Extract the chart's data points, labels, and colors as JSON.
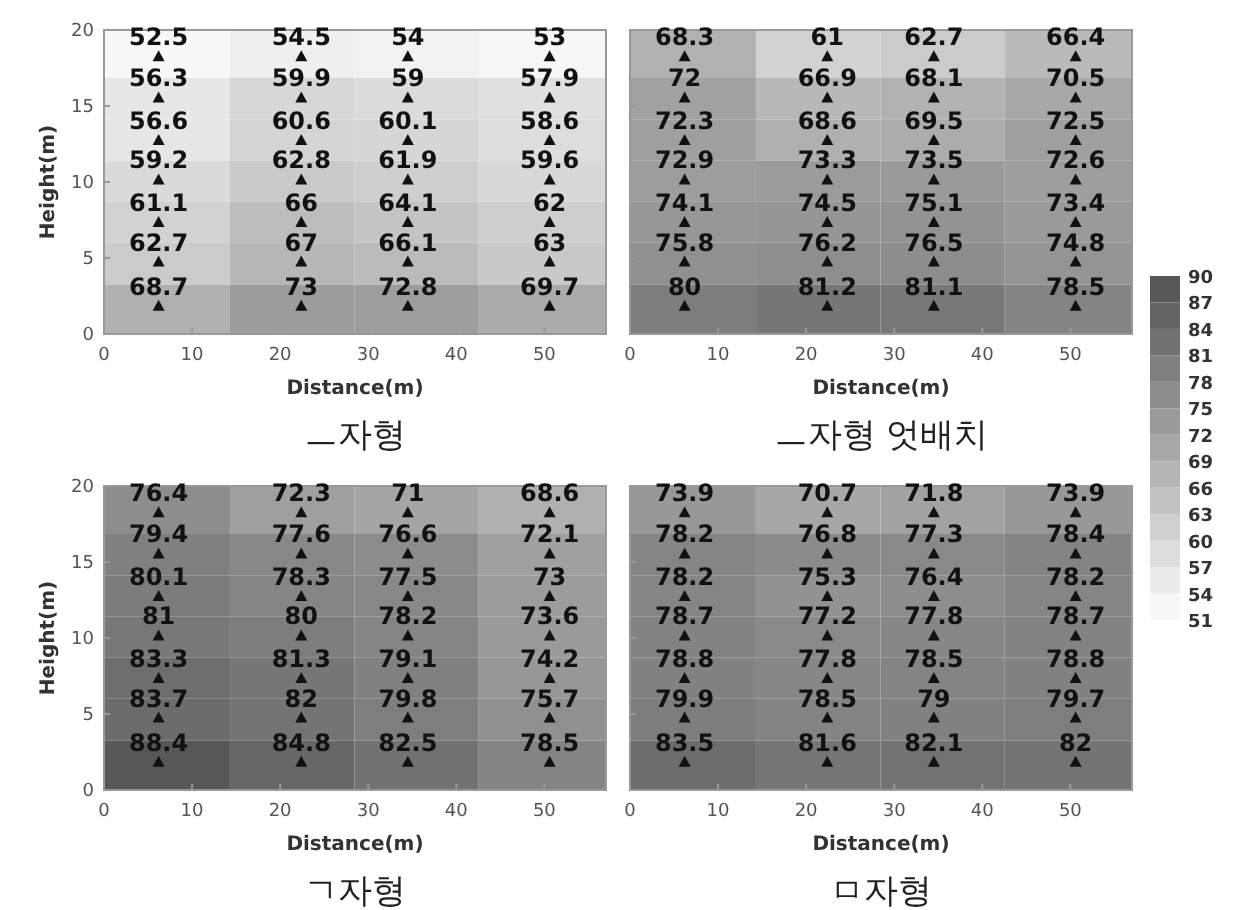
{
  "chart_data": [
    {
      "type": "scatter",
      "title": "ㅡ자형",
      "xlabel": "Distance(m)",
      "ylabel": "Height(m)",
      "xlim": [
        0,
        57
      ],
      "ylim": [
        0,
        20
      ],
      "xticks": [
        0,
        10,
        20,
        30,
        40,
        50
      ],
      "yticks": [
        0,
        5,
        10,
        15,
        20
      ],
      "marker": "triangle",
      "color": "#111111",
      "x": [
        6.2,
        22.4,
        34.5,
        50.6,
        6.2,
        22.4,
        34.5,
        50.6,
        6.2,
        22.4,
        34.5,
        50.6,
        6.2,
        22.4,
        34.5,
        50.6,
        6.2,
        22.4,
        34.5,
        50.6,
        6.2,
        22.4,
        34.5,
        50.6,
        6.2,
        22.4,
        34.5,
        50.6
      ],
      "values": [
        18.2,
        18.2,
        18.2,
        18.2,
        15.5,
        15.5,
        15.5,
        15.5,
        12.7,
        12.7,
        12.7,
        12.7,
        10.1,
        10.1,
        10.1,
        10.1,
        7.3,
        7.3,
        7.3,
        7.3,
        4.7,
        4.7,
        4.7,
        4.7,
        1.8,
        1.8,
        1.8,
        1.8
      ],
      "annotations": [
        {
          "text": "52.5",
          "x": 6.2,
          "y": 18.2
        },
        {
          "text": "54.5",
          "x": 22.4,
          "y": 18.2
        },
        {
          "text": "54",
          "x": 34.5,
          "y": 18.2
        },
        {
          "text": "53",
          "x": 50.6,
          "y": 18.2
        },
        {
          "text": "56.3",
          "x": 6.2,
          "y": 15.5
        },
        {
          "text": "59.9",
          "x": 22.4,
          "y": 15.5
        },
        {
          "text": "59",
          "x": 34.5,
          "y": 15.5
        },
        {
          "text": "57.9",
          "x": 50.6,
          "y": 15.5
        },
        {
          "text": "56.6",
          "x": 6.2,
          "y": 12.7
        },
        {
          "text": "60.6",
          "x": 22.4,
          "y": 12.7
        },
        {
          "text": "60.1",
          "x": 34.5,
          "y": 12.7
        },
        {
          "text": "58.6",
          "x": 50.6,
          "y": 12.7
        },
        {
          "text": "59.2",
          "x": 6.2,
          "y": 10.1
        },
        {
          "text": "62.8",
          "x": 22.4,
          "y": 10.1
        },
        {
          "text": "61.9",
          "x": 34.5,
          "y": 10.1
        },
        {
          "text": "59.6",
          "x": 50.6,
          "y": 10.1
        },
        {
          "text": "61.1",
          "x": 6.2,
          "y": 7.3
        },
        {
          "text": "66",
          "x": 22.4,
          "y": 7.3
        },
        {
          "text": "64.1",
          "x": 34.5,
          "y": 7.3
        },
        {
          "text": "62",
          "x": 50.6,
          "y": 7.3
        },
        {
          "text": "62.7",
          "x": 6.2,
          "y": 4.7
        },
        {
          "text": "67",
          "x": 22.4,
          "y": 4.7
        },
        {
          "text": "66.1",
          "x": 34.5,
          "y": 4.7
        },
        {
          "text": "63",
          "x": 50.6,
          "y": 4.7
        },
        {
          "text": "68.7",
          "x": 6.2,
          "y": 1.8
        },
        {
          "text": "73",
          "x": 22.4,
          "y": 1.8
        },
        {
          "text": "72.8",
          "x": 34.5,
          "y": 1.8
        },
        {
          "text": "69.7",
          "x": 50.6,
          "y": 1.8
        }
      ]
    },
    {
      "type": "scatter",
      "title": "ㅡ자형 엇배치",
      "xlabel": "Distance(m)",
      "xlim": [
        0,
        57
      ],
      "ylim": [
        0,
        20
      ],
      "xticks": [
        0,
        10,
        20,
        30,
        40,
        50
      ],
      "yticks": [
        0,
        5,
        10,
        15,
        20
      ],
      "tick_labels": "x",
      "marker": "triangle",
      "color": "#111111",
      "clim": [
        51,
        90
      ],
      "cticks": [
        51,
        54,
        57,
        60,
        63,
        66,
        69,
        72,
        75,
        78,
        81,
        84,
        87,
        90
      ],
      "x": [
        6.2,
        22.4,
        34.5,
        50.6,
        6.2,
        22.4,
        34.5,
        50.6,
        6.2,
        22.4,
        34.5,
        50.6,
        6.2,
        22.4,
        34.5,
        50.6,
        6.2,
        22.4,
        34.5,
        50.6,
        6.2,
        22.4,
        34.5,
        50.6,
        6.2,
        22.4,
        34.5,
        50.6
      ],
      "values": [
        18.2,
        18.2,
        18.2,
        18.2,
        15.5,
        15.5,
        15.5,
        15.5,
        12.7,
        12.7,
        12.7,
        12.7,
        10.1,
        10.1,
        10.1,
        10.1,
        7.3,
        7.3,
        7.3,
        7.3,
        4.7,
        4.7,
        4.7,
        4.7,
        1.8,
        1.8,
        1.8,
        1.8
      ],
      "annotations": [
        {
          "text": "68.3",
          "x": 6.2,
          "y": 18.2
        },
        {
          "text": "61",
          "x": 22.4,
          "y": 18.2
        },
        {
          "text": "62.7",
          "x": 34.5,
          "y": 18.2
        },
        {
          "text": "66.4",
          "x": 50.6,
          "y": 18.2
        },
        {
          "text": "72",
          "x": 6.2,
          "y": 15.5
        },
        {
          "text": "66.9",
          "x": 22.4,
          "y": 15.5
        },
        {
          "text": "68.1",
          "x": 34.5,
          "y": 15.5
        },
        {
          "text": "70.5",
          "x": 50.6,
          "y": 15.5
        },
        {
          "text": "72.3",
          "x": 6.2,
          "y": 12.7
        },
        {
          "text": "68.6",
          "x": 22.4,
          "y": 12.7
        },
        {
          "text": "69.5",
          "x": 34.5,
          "y": 12.7
        },
        {
          "text": "72.5",
          "x": 50.6,
          "y": 12.7
        },
        {
          "text": "72.9",
          "x": 6.2,
          "y": 10.1
        },
        {
          "text": "73.3",
          "x": 22.4,
          "y": 10.1
        },
        {
          "text": "73.5",
          "x": 34.5,
          "y": 10.1
        },
        {
          "text": "72.6",
          "x": 50.6,
          "y": 10.1
        },
        {
          "text": "74.1",
          "x": 6.2,
          "y": 7.3
        },
        {
          "text": "74.5",
          "x": 22.4,
          "y": 7.3
        },
        {
          "text": "75.1",
          "x": 34.5,
          "y": 7.3
        },
        {
          "text": "73.4",
          "x": 50.6,
          "y": 7.3
        },
        {
          "text": "75.8",
          "x": 6.2,
          "y": 4.7
        },
        {
          "text": "76.2",
          "x": 22.4,
          "y": 4.7
        },
        {
          "text": "76.5",
          "x": 34.5,
          "y": 4.7
        },
        {
          "text": "74.8",
          "x": 50.6,
          "y": 4.7
        },
        {
          "text": "80",
          "x": 6.2,
          "y": 1.8
        },
        {
          "text": "81.2",
          "x": 22.4,
          "y": 1.8
        },
        {
          "text": "81.1",
          "x": 34.5,
          "y": 1.8
        },
        {
          "text": "78.5",
          "x": 50.6,
          "y": 1.8
        }
      ]
    },
    {
      "type": "scatter",
      "title": "ㄱ자형",
      "xlabel": "Distance(m)",
      "ylabel": "Height(m)",
      "xlim": [
        0,
        57
      ],
      "ylim": [
        0,
        20
      ],
      "xticks": [
        0,
        10,
        20,
        30,
        40,
        50
      ],
      "yticks": [
        0,
        5,
        10,
        15,
        20
      ],
      "marker": "triangle",
      "color": "#111111",
      "x": [
        6.2,
        22.4,
        34.5,
        50.6,
        6.2,
        22.4,
        34.5,
        50.6,
        6.2,
        22.4,
        34.5,
        50.6,
        6.2,
        22.4,
        34.5,
        50.6,
        6.2,
        22.4,
        34.5,
        50.6,
        6.2,
        22.4,
        34.5,
        50.6,
        6.2,
        22.4,
        34.5,
        50.6
      ],
      "values": [
        18.2,
        18.2,
        18.2,
        18.2,
        15.5,
        15.5,
        15.5,
        15.5,
        12.7,
        12.7,
        12.7,
        12.7,
        10.1,
        10.1,
        10.1,
        10.1,
        7.3,
        7.3,
        7.3,
        7.3,
        4.7,
        4.7,
        4.7,
        4.7,
        1.8,
        1.8,
        1.8,
        1.8
      ],
      "annotations": [
        {
          "text": "76.4",
          "x": 6.2,
          "y": 18.2
        },
        {
          "text": "72.3",
          "x": 22.4,
          "y": 18.2
        },
        {
          "text": "71",
          "x": 34.5,
          "y": 18.2
        },
        {
          "text": "68.6",
          "x": 50.6,
          "y": 18.2
        },
        {
          "text": "79.4",
          "x": 6.2,
          "y": 15.5
        },
        {
          "text": "77.6",
          "x": 22.4,
          "y": 15.5
        },
        {
          "text": "76.6",
          "x": 34.5,
          "y": 15.5
        },
        {
          "text": "72.1",
          "x": 50.6,
          "y": 15.5
        },
        {
          "text": "80.1",
          "x": 6.2,
          "y": 12.7
        },
        {
          "text": "78.3",
          "x": 22.4,
          "y": 12.7
        },
        {
          "text": "77.5",
          "x": 34.5,
          "y": 12.7
        },
        {
          "text": "73",
          "x": 50.6,
          "y": 12.7
        },
        {
          "text": "81",
          "x": 6.2,
          "y": 10.1
        },
        {
          "text": "80",
          "x": 22.4,
          "y": 10.1
        },
        {
          "text": "78.2",
          "x": 34.5,
          "y": 10.1
        },
        {
          "text": "73.6",
          "x": 50.6,
          "y": 10.1
        },
        {
          "text": "83.3",
          "x": 6.2,
          "y": 7.3
        },
        {
          "text": "81.3",
          "x": 22.4,
          "y": 7.3
        },
        {
          "text": "79.1",
          "x": 34.5,
          "y": 7.3
        },
        {
          "text": "74.2",
          "x": 50.6,
          "y": 7.3
        },
        {
          "text": "83.7",
          "x": 6.2,
          "y": 4.7
        },
        {
          "text": "82",
          "x": 22.4,
          "y": 4.7
        },
        {
          "text": "79.8",
          "x": 34.5,
          "y": 4.7
        },
        {
          "text": "75.7",
          "x": 50.6,
          "y": 4.7
        },
        {
          "text": "88.4",
          "x": 6.2,
          "y": 1.8
        },
        {
          "text": "84.8",
          "x": 22.4,
          "y": 1.8
        },
        {
          "text": "82.5",
          "x": 34.5,
          "y": 1.8
        },
        {
          "text": "78.5",
          "x": 50.6,
          "y": 1.8
        }
      ]
    },
    {
      "type": "scatter",
      "title": "ㅁ자형",
      "xlabel": "Distance(m)",
      "xlim": [
        0,
        57
      ],
      "ylim": [
        0,
        20
      ],
      "xticks": [
        0,
        10,
        20,
        30,
        40,
        50
      ],
      "yticks": [
        0,
        5,
        10,
        15,
        20
      ],
      "tick_labels": "x",
      "marker": "triangle",
      "color": "#111111",
      "x": [
        6.2,
        22.4,
        34.5,
        50.6,
        6.2,
        22.4,
        34.5,
        50.6,
        6.2,
        22.4,
        34.5,
        50.6,
        6.2,
        22.4,
        34.5,
        50.6,
        6.2,
        22.4,
        34.5,
        50.6,
        6.2,
        22.4,
        34.5,
        50.6,
        6.2,
        22.4,
        34.5,
        50.6
      ],
      "values": [
        18.2,
        18.2,
        18.2,
        18.2,
        15.5,
        15.5,
        15.5,
        15.5,
        12.7,
        12.7,
        12.7,
        12.7,
        10.1,
        10.1,
        10.1,
        10.1,
        7.3,
        7.3,
        7.3,
        7.3,
        4.7,
        4.7,
        4.7,
        4.7,
        1.8,
        1.8,
        1.8,
        1.8
      ],
      "annotations": [
        {
          "text": "73.9",
          "x": 6.2,
          "y": 18.2
        },
        {
          "text": "70.7",
          "x": 22.4,
          "y": 18.2
        },
        {
          "text": "71.8",
          "x": 34.5,
          "y": 18.2
        },
        {
          "text": "73.9",
          "x": 50.6,
          "y": 18.2
        },
        {
          "text": "78.2",
          "x": 6.2,
          "y": 15.5
        },
        {
          "text": "76.8",
          "x": 22.4,
          "y": 15.5
        },
        {
          "text": "77.3",
          "x": 34.5,
          "y": 15.5
        },
        {
          "text": "78.4",
          "x": 50.6,
          "y": 15.5
        },
        {
          "text": "78.2",
          "x": 6.2,
          "y": 12.7
        },
        {
          "text": "75.3",
          "x": 22.4,
          "y": 12.7
        },
        {
          "text": "76.4",
          "x": 34.5,
          "y": 12.7
        },
        {
          "text": "78.2",
          "x": 50.6,
          "y": 12.7
        },
        {
          "text": "78.7",
          "x": 6.2,
          "y": 10.1
        },
        {
          "text": "77.2",
          "x": 22.4,
          "y": 10.1
        },
        {
          "text": "77.8",
          "x": 34.5,
          "y": 10.1
        },
        {
          "text": "78.7",
          "x": 50.6,
          "y": 10.1
        },
        {
          "text": "78.8",
          "x": 6.2,
          "y": 7.3
        },
        {
          "text": "77.8",
          "x": 22.4,
          "y": 7.3
        },
        {
          "text": "78.5",
          "x": 34.5,
          "y": 7.3
        },
        {
          "text": "78.8",
          "x": 50.6,
          "y": 7.3
        },
        {
          "text": "79.9",
          "x": 6.2,
          "y": 4.7
        },
        {
          "text": "78.5",
          "x": 22.4,
          "y": 4.7
        },
        {
          "text": "79",
          "x": 34.5,
          "y": 4.7
        },
        {
          "text": "79.7",
          "x": 50.6,
          "y": 4.7
        },
        {
          "text": "83.5",
          "x": 6.2,
          "y": 1.8
        },
        {
          "text": "81.6",
          "x": 22.4,
          "y": 1.8
        },
        {
          "text": "82.1",
          "x": 34.5,
          "y": 1.8
        },
        {
          "text": "82",
          "x": 50.6,
          "y": 1.8
        }
      ]
    }
  ]
}
